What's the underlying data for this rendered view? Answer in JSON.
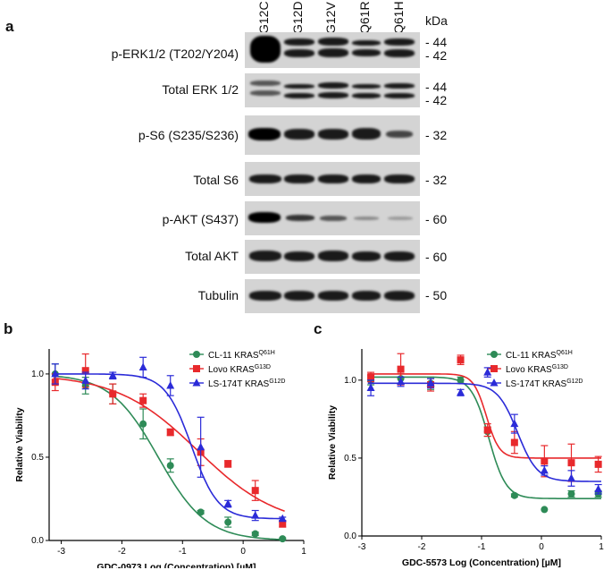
{
  "panel_a": {
    "letter": "a",
    "lanes": [
      "G12C",
      "G12D",
      "G12V",
      "Q61R",
      "Q61H"
    ],
    "kda_header": "kDa",
    "blots": [
      {
        "label": "p-ERK1/2 (T202/Y204)",
        "markers": [
          "- 44",
          "- 42"
        ]
      },
      {
        "label": "Total ERK 1/2",
        "markers": [
          "- 44",
          "- 42"
        ]
      },
      {
        "label": "p-S6 (S235/S236)",
        "markers": [
          "- 32"
        ]
      },
      {
        "label": "Total S6",
        "markers": [
          "- 32"
        ]
      },
      {
        "label": "p-AKT (S437)",
        "markers": [
          "- 60"
        ]
      },
      {
        "label": "Total AKT",
        "markers": [
          "- 60"
        ]
      },
      {
        "label": "Tubulin",
        "markers": [
          "- 50"
        ]
      }
    ]
  },
  "panel_b": {
    "letter": "b"
  },
  "panel_c": {
    "letter": "c"
  },
  "chart_data": [
    {
      "type": "scatter",
      "panel": "b",
      "xlabel": "GDC-0973 Log (Concentration) [µM]",
      "ylabel": "Relative Viability",
      "xlim": [
        -3.2,
        1
      ],
      "ylim": [
        0,
        1.15
      ],
      "xticks": [
        -3,
        -2,
        -1,
        0,
        1
      ],
      "yticks": [
        0.0,
        0.5,
        1.0
      ],
      "legend_placement": "top-right",
      "series": [
        {
          "name": "CL-11 KRAS",
          "sup": "Q61H",
          "color": "#2e8b57",
          "marker": "circle",
          "x": [
            -3.1,
            -2.6,
            -2.15,
            -1.65,
            -1.2,
            -0.7,
            -0.25,
            0.2,
            0.65
          ],
          "y": [
            1.0,
            0.93,
            0.88,
            0.7,
            0.45,
            0.17,
            0.11,
            0.04,
            0.01
          ],
          "err": [
            0.06,
            0.05,
            0.06,
            0.09,
            0.04,
            0.01,
            0.03,
            0.01,
            0.005
          ],
          "fit": {
            "top": 1.0,
            "bottom": 0.0,
            "logec50": -1.4,
            "hill": 1.1
          }
        },
        {
          "name": "Lovo KRAS",
          "sup": "G13D",
          "color": "#e8292c",
          "marker": "square",
          "x": [
            -3.1,
            -2.6,
            -2.15,
            -1.65,
            -1.2,
            -0.7,
            -0.25,
            0.2,
            0.65
          ],
          "y": [
            0.95,
            1.02,
            0.88,
            0.84,
            0.65,
            0.53,
            0.46,
            0.3,
            0.1
          ],
          "err": [
            0.05,
            0.1,
            0.06,
            0.04,
            0.02,
            0.08,
            0.02,
            0.06,
            0.02
          ],
          "fit": {
            "top": 1.0,
            "bottom": 0.08,
            "logec50": -0.75,
            "hill": 0.65
          }
        },
        {
          "name": "LS-174T KRAS",
          "sup": "G12D",
          "color": "#2b2bd8",
          "marker": "triangle",
          "x": [
            -3.1,
            -2.6,
            -2.15,
            -1.65,
            -1.2,
            -0.7,
            -0.25,
            0.2,
            0.65
          ],
          "y": [
            1.0,
            0.96,
            0.99,
            1.04,
            0.93,
            0.56,
            0.22,
            0.15,
            0.13
          ],
          "err": [
            0.06,
            0.05,
            0.02,
            0.06,
            0.06,
            0.18,
            0.02,
            0.03,
            0.01
          ],
          "fit": {
            "top": 1.0,
            "bottom": 0.13,
            "logec50": -0.85,
            "hill": 2.0
          }
        }
      ]
    },
    {
      "type": "scatter",
      "panel": "c",
      "xlabel": "GDC-5573 Log (Concentration) [µM]",
      "ylabel": "Relative Viability",
      "xlim": [
        -3,
        1
      ],
      "ylim": [
        0,
        1.2
      ],
      "xticks": [
        -3,
        -2,
        -1,
        0,
        1
      ],
      "yticks": [
        0.0,
        0.5,
        1.0
      ],
      "legend_placement": "top-right",
      "series": [
        {
          "name": "CL-11 KRAS",
          "sup": "Q61H",
          "color": "#2e8b57",
          "marker": "circle",
          "x": [
            -2.85,
            -2.35,
            -1.85,
            -1.35,
            -0.9,
            -0.45,
            0.05,
            0.5,
            0.95
          ],
          "y": [
            1.0,
            1.01,
            0.98,
            1.0,
            0.67,
            0.26,
            0.17,
            0.27,
            0.27
          ],
          "err": [
            0.03,
            0.03,
            0.04,
            0.02,
            0.03,
            0.01,
            0.0,
            0.02,
            0.02
          ],
          "fit": {
            "top": 1.02,
            "bottom": 0.24,
            "logec50": -0.88,
            "hill": 3.0
          }
        },
        {
          "name": "Lovo KRAS",
          "sup": "G13D",
          "color": "#e8292c",
          "marker": "square",
          "x": [
            -2.85,
            -2.35,
            -1.85,
            -1.35,
            -0.9,
            -0.45,
            0.05,
            0.5,
            0.95
          ],
          "y": [
            1.02,
            1.07,
            0.97,
            1.13,
            0.68,
            0.6,
            0.48,
            0.47,
            0.46
          ],
          "err": [
            0.03,
            0.1,
            0.04,
            0.03,
            0.04,
            0.07,
            0.1,
            0.12,
            0.05
          ],
          "fit": {
            "top": 1.04,
            "bottom": 0.5,
            "logec50": -0.92,
            "hill": 4.0
          }
        },
        {
          "name": "LS-174T KRAS",
          "sup": "G12D",
          "color": "#2b2bd8",
          "marker": "triangle",
          "x": [
            -2.85,
            -2.35,
            -1.85,
            -1.35,
            -0.9,
            -0.45,
            0.05,
            0.5,
            0.95
          ],
          "y": [
            0.95,
            0.99,
            0.98,
            0.92,
            1.05,
            0.72,
            0.42,
            0.37,
            0.3
          ],
          "err": [
            0.05,
            0.03,
            0.03,
            0.02,
            0.03,
            0.06,
            0.03,
            0.05,
            0.03
          ],
          "fit": {
            "top": 0.98,
            "bottom": 0.35,
            "logec50": -0.4,
            "hill": 2.6
          }
        }
      ]
    }
  ]
}
